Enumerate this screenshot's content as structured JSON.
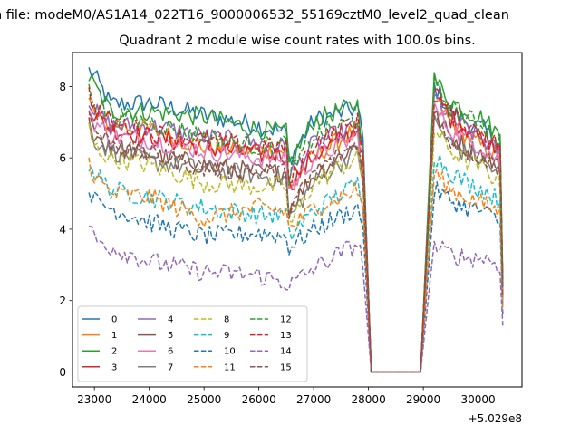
{
  "suptitle": "n file: modeM0/AS1A14_022T16_9000006532_55169cztM0_level2_quad_clean",
  "chart_data": {
    "type": "line",
    "title": "Quadrant 2 module wise count rates with 100.0s bins.",
    "xlabel": "",
    "ylabel": "",
    "x_offset_label": "+5.029e8",
    "xlim": [
      22600,
      30800
    ],
    "ylim": [
      -0.42,
      8.95
    ],
    "x_ticks": [
      23000,
      24000,
      25000,
      26000,
      27000,
      28000,
      29000,
      30000
    ],
    "x_tick_labels": [
      "23000",
      "24000",
      "25000",
      "26000",
      "27000",
      "28000",
      "29000",
      "30000"
    ],
    "y_ticks": [
      0,
      2,
      4,
      6,
      8
    ],
    "y_tick_labels": [
      "0",
      "2",
      "4",
      "6",
      "8"
    ],
    "grid": false,
    "legend_position": "lower-left",
    "legend_columns": 4,
    "series": [
      {
        "name": "0",
        "color": "#1f77b4",
        "style": "solid",
        "keypoints": [
          [
            22900,
            8.45
          ],
          [
            23000,
            8.3
          ],
          [
            23300,
            7.5
          ],
          [
            24000,
            7.55
          ],
          [
            25000,
            7.2
          ],
          [
            26000,
            6.9
          ],
          [
            26500,
            6.7
          ],
          [
            26550,
            5.95
          ],
          [
            27000,
            7.05
          ],
          [
            27800,
            7.4
          ],
          [
            27900,
            6.5
          ]
        ]
      },
      {
        "name": "1",
        "color": "#ff7f0e",
        "style": "solid",
        "keypoints": [
          [
            22900,
            7.6
          ],
          [
            23000,
            7.2
          ],
          [
            23300,
            6.9
          ],
          [
            24000,
            6.8
          ],
          [
            25000,
            6.3
          ],
          [
            26000,
            6.2
          ],
          [
            26500,
            6.2
          ],
          [
            26550,
            5.1
          ],
          [
            27000,
            6.05
          ],
          [
            27800,
            6.8
          ],
          [
            27900,
            6.0
          ]
        ]
      },
      {
        "name": "2",
        "color": "#2ca02c",
        "style": "solid",
        "keypoints": [
          [
            22900,
            8.25
          ],
          [
            23000,
            8.0
          ],
          [
            23300,
            7.3
          ],
          [
            24000,
            7.3
          ],
          [
            25000,
            7.15
          ],
          [
            26000,
            6.8
          ],
          [
            26500,
            6.7
          ],
          [
            26550,
            5.8
          ],
          [
            27000,
            7.05
          ],
          [
            27800,
            7.5
          ],
          [
            27900,
            6.4
          ]
        ]
      },
      {
        "name": "3",
        "color": "#d62728",
        "style": "solid",
        "keypoints": [
          [
            22900,
            7.5
          ],
          [
            23000,
            7.2
          ],
          [
            23300,
            6.8
          ],
          [
            24000,
            6.6
          ],
          [
            25000,
            6.3
          ],
          [
            26000,
            6.1
          ],
          [
            26500,
            6.1
          ],
          [
            26550,
            5.2
          ],
          [
            27000,
            6.05
          ],
          [
            27800,
            6.8
          ],
          [
            27900,
            6.0
          ]
        ]
      },
      {
        "name": "4",
        "color": "#9467bd",
        "style": "solid",
        "keypoints": [
          [
            22900,
            7.7
          ],
          [
            23000,
            7.3
          ],
          [
            23300,
            6.9
          ],
          [
            24000,
            6.9
          ],
          [
            25000,
            6.6
          ],
          [
            26000,
            6.4
          ],
          [
            26500,
            6.3
          ],
          [
            26550,
            5.5
          ],
          [
            27000,
            6.4
          ],
          [
            27800,
            6.9
          ],
          [
            27900,
            6.1
          ]
        ]
      },
      {
        "name": "5",
        "color": "#8c564b",
        "style": "solid",
        "keypoints": [
          [
            22900,
            7.0
          ],
          [
            23000,
            6.6
          ],
          [
            23300,
            6.3
          ],
          [
            24000,
            6.1
          ],
          [
            25000,
            5.8
          ],
          [
            26000,
            5.6
          ],
          [
            26500,
            5.6
          ],
          [
            26550,
            4.6
          ],
          [
            27000,
            5.5
          ],
          [
            27800,
            6.4
          ],
          [
            27900,
            5.6
          ]
        ]
      },
      {
        "name": "6",
        "color": "#e377c2",
        "style": "solid",
        "keypoints": [
          [
            22900,
            7.3
          ],
          [
            23000,
            7.0
          ],
          [
            23300,
            6.6
          ],
          [
            24000,
            6.5
          ],
          [
            25000,
            6.2
          ],
          [
            26000,
            6.0
          ],
          [
            26500,
            6.0
          ],
          [
            26550,
            5.1
          ],
          [
            27000,
            6.0
          ],
          [
            27800,
            6.6
          ],
          [
            27900,
            5.8
          ]
        ]
      },
      {
        "name": "7",
        "color": "#7f7f7f",
        "style": "solid",
        "keypoints": [
          [
            22900,
            6.9
          ],
          [
            23000,
            6.5
          ],
          [
            23300,
            6.2
          ],
          [
            24000,
            5.9
          ],
          [
            25000,
            5.7
          ],
          [
            26000,
            5.5
          ],
          [
            26500,
            5.4
          ],
          [
            26550,
            4.3
          ],
          [
            27000,
            5.3
          ],
          [
            27800,
            6.2
          ],
          [
            27900,
            5.4
          ]
        ]
      },
      {
        "name": "8",
        "color": "#bcbd22",
        "style": "dashed",
        "keypoints": [
          [
            22900,
            6.8
          ],
          [
            23000,
            6.3
          ],
          [
            23300,
            6.0
          ],
          [
            24000,
            5.8
          ],
          [
            25000,
            5.3
          ],
          [
            26000,
            5.2
          ],
          [
            26500,
            5.2
          ],
          [
            26550,
            4.1
          ],
          [
            27000,
            5.3
          ],
          [
            27800,
            6.0
          ],
          [
            27900,
            5.3
          ]
        ]
      },
      {
        "name": "9",
        "color": "#17becf",
        "style": "dashed",
        "keypoints": [
          [
            22900,
            5.85
          ],
          [
            23000,
            5.6
          ],
          [
            23300,
            5.1
          ],
          [
            24000,
            4.9
          ],
          [
            25000,
            4.6
          ],
          [
            26000,
            4.4
          ],
          [
            26500,
            4.4
          ],
          [
            26550,
            3.8
          ],
          [
            27000,
            4.5
          ],
          [
            27800,
            5.3
          ],
          [
            27900,
            4.8
          ]
        ]
      },
      {
        "name": "10",
        "color": "#1f77b4",
        "style": "dashed",
        "keypoints": [
          [
            22900,
            5.2
          ],
          [
            23000,
            4.8
          ],
          [
            23300,
            4.6
          ],
          [
            24000,
            4.2
          ],
          [
            25000,
            3.8
          ],
          [
            26000,
            3.9
          ],
          [
            26500,
            3.8
          ],
          [
            26550,
            3.5
          ],
          [
            27000,
            4.0
          ],
          [
            27800,
            4.6
          ],
          [
            27900,
            4.1
          ]
        ]
      },
      {
        "name": "11",
        "color": "#ff7f0e",
        "style": "dashed",
        "keypoints": [
          [
            22900,
            5.9
          ],
          [
            23000,
            5.5
          ],
          [
            23300,
            5.0
          ],
          [
            24000,
            4.9
          ],
          [
            25000,
            4.3
          ],
          [
            26000,
            4.6
          ],
          [
            26500,
            4.5
          ],
          [
            26550,
            4.0
          ],
          [
            27000,
            4.6
          ],
          [
            27800,
            5.1
          ],
          [
            27900,
            4.6
          ]
        ]
      },
      {
        "name": "12",
        "color": "#2ca02c",
        "style": "dashed",
        "keypoints": [
          [
            22900,
            8.1
          ],
          [
            23000,
            7.6
          ],
          [
            23300,
            7.2
          ],
          [
            24000,
            7.0
          ],
          [
            25000,
            6.6
          ],
          [
            26000,
            6.3
          ],
          [
            26500,
            6.4
          ],
          [
            26550,
            5.5
          ],
          [
            27000,
            6.6
          ],
          [
            27800,
            7.1
          ],
          [
            27900,
            6.2
          ]
        ]
      },
      {
        "name": "13",
        "color": "#d62728",
        "style": "dashed",
        "keypoints": [
          [
            22900,
            7.8
          ],
          [
            23000,
            7.4
          ],
          [
            23300,
            7.0
          ],
          [
            24000,
            6.7
          ],
          [
            25000,
            6.5
          ],
          [
            26000,
            6.3
          ],
          [
            26500,
            6.3
          ],
          [
            26550,
            5.3
          ],
          [
            27000,
            6.4
          ],
          [
            27800,
            7.0
          ],
          [
            27900,
            6.1
          ]
        ]
      },
      {
        "name": "14",
        "color": "#9467bd",
        "style": "dashed",
        "keypoints": [
          [
            22900,
            4.2
          ],
          [
            23000,
            3.7
          ],
          [
            23300,
            3.5
          ],
          [
            24000,
            3.1
          ],
          [
            25000,
            2.8
          ],
          [
            26000,
            2.7
          ],
          [
            26500,
            2.5
          ],
          [
            26550,
            2.4
          ],
          [
            27000,
            2.9
          ],
          [
            27800,
            3.6
          ],
          [
            27900,
            3.1
          ]
        ]
      },
      {
        "name": "15",
        "color": "#8c564b",
        "style": "dashed",
        "keypoints": [
          [
            22900,
            7.2
          ],
          [
            23000,
            6.8
          ],
          [
            23300,
            6.4
          ],
          [
            24000,
            6.1
          ],
          [
            25000,
            5.7
          ],
          [
            26000,
            5.6
          ],
          [
            26500,
            5.6
          ],
          [
            26550,
            4.5
          ],
          [
            27000,
            5.6
          ],
          [
            27800,
            6.4
          ],
          [
            27900,
            5.6
          ]
        ]
      }
    ],
    "gap": {
      "start": 28050,
      "end": 28950,
      "value": 0
    },
    "second_segment": {
      "start": 29200,
      "end": 30450,
      "series_values": {
        "0": [
          8.0,
          7.3,
          7.0,
          6.8,
          6.4,
          2.4
        ],
        "1": [
          7.6,
          7.0,
          6.6,
          6.3,
          6.0,
          2.1
        ],
        "2": [
          8.2,
          7.6,
          7.3,
          7.1,
          6.6,
          2.6
        ],
        "3": [
          7.9,
          7.1,
          6.8,
          6.6,
          6.3,
          2.4
        ],
        "4": [
          7.7,
          7.1,
          6.8,
          6.5,
          6.1,
          2.3
        ],
        "5": [
          7.2,
          6.6,
          6.3,
          6.1,
          5.7,
          2.1
        ],
        "6": [
          7.4,
          6.8,
          6.5,
          6.3,
          5.9,
          2.2
        ],
        "7": [
          7.0,
          6.4,
          6.1,
          5.9,
          5.5,
          2.0
        ],
        "8": [
          6.8,
          6.2,
          5.9,
          5.7,
          5.3,
          1.9
        ],
        "9": [
          6.1,
          5.6,
          5.3,
          5.1,
          4.8,
          1.8
        ],
        "10": [
          5.1,
          4.8,
          4.6,
          4.5,
          4.2,
          1.6
        ],
        "11": [
          5.6,
          5.1,
          4.9,
          4.7,
          4.5,
          1.7
        ],
        "12": [
          8.0,
          7.4,
          7.1,
          6.9,
          6.5,
          2.5
        ],
        "13": [
          7.8,
          7.2,
          6.9,
          6.7,
          6.3,
          2.4
        ],
        "14": [
          3.5,
          3.3,
          3.2,
          3.2,
          3.0,
          1.3
        ],
        "15": [
          7.1,
          6.5,
          6.2,
          6.0,
          5.7,
          2.1
        ]
      }
    }
  }
}
